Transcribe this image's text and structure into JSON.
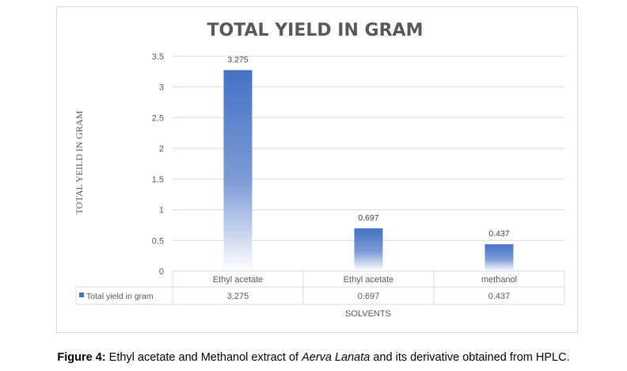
{
  "chart_data": {
    "type": "bar",
    "title": "TOTAL YIELD IN GRAM",
    "xlabel": "SOLVENTS",
    "ylabel": "TOTAL YEILD IN GRAM",
    "categories": [
      "Ethyl acetate",
      "Ethyl acetate",
      "methanol"
    ],
    "series": [
      {
        "name": "Total yield in gram",
        "values": [
          3.275,
          0.697,
          0.437
        ],
        "color": "#4472c4"
      }
    ],
    "data_labels": [
      "3.275",
      "0.697",
      "0.437"
    ],
    "ylim": [
      0,
      3.5
    ],
    "yticks": [
      "0",
      "0.5",
      "1",
      "1.5",
      "2",
      "2.5",
      "3",
      "3.5"
    ],
    "grid": true,
    "legend": "data-table"
  },
  "caption": {
    "label": "Figure 4:",
    "text1": " Ethyl acetate and Methanol extract of ",
    "italic": "Aerva Lanata",
    "text2": " and its derivative obtained from HPLC."
  }
}
